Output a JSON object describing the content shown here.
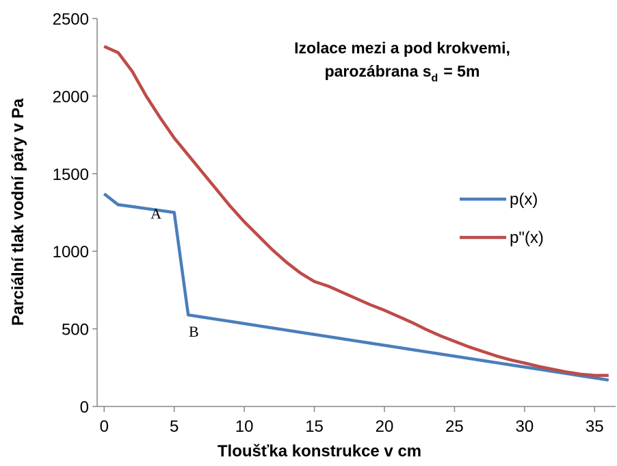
{
  "chart_data": {
    "type": "line",
    "title_lines": [
      "Izolace mezi a pod krokvemi,",
      "parozábrana s",
      "d",
      "= 5m"
    ],
    "x_label": "Tloušťka konstrukce v cm",
    "y_label": "Parciální tlak vodní páry v Pa",
    "x": [
      0,
      1,
      2,
      3,
      4,
      5,
      6,
      7,
      8,
      9,
      10,
      11,
      12,
      13,
      14,
      15,
      16,
      17,
      18,
      19,
      20,
      21,
      22,
      23,
      24,
      25,
      26,
      27,
      28,
      29,
      30,
      31,
      32,
      33,
      34,
      35,
      36
    ],
    "series": [
      {
        "name": "p(x)",
        "color": "#4a7ebb",
        "values": [
          1370,
          1300,
          1288,
          1275,
          1263,
          1250,
          590,
          576,
          562,
          548,
          534,
          520,
          506,
          492,
          478,
          464,
          450,
          436,
          422,
          408,
          394,
          380,
          366,
          352,
          338,
          324,
          310,
          296,
          282,
          268,
          254,
          240,
          226,
          212,
          198,
          184,
          170
        ]
      },
      {
        "name": "p\"(x)",
        "color": "#be4b48",
        "values": [
          2320,
          2280,
          2160,
          2000,
          1860,
          1730,
          1620,
          1510,
          1400,
          1290,
          1190,
          1100,
          1010,
          930,
          860,
          805,
          775,
          735,
          695,
          655,
          620,
          580,
          540,
          495,
          455,
          420,
          385,
          355,
          325,
          300,
          280,
          258,
          240,
          222,
          208,
          200,
          200
        ]
      }
    ],
    "annotations": [
      {
        "text": "A",
        "x": 3.7,
        "y": 1210
      },
      {
        "text": "B",
        "x": 6.4,
        "y": 450
      }
    ],
    "xlim": [
      -0.5,
      36.5
    ],
    "xticks": [
      0,
      5,
      10,
      15,
      20,
      25,
      30,
      35
    ],
    "ylim": [
      0,
      2500
    ],
    "yticks": [
      0,
      500,
      1000,
      1500,
      2000,
      2500
    ],
    "grid": false,
    "legend": "right"
  }
}
